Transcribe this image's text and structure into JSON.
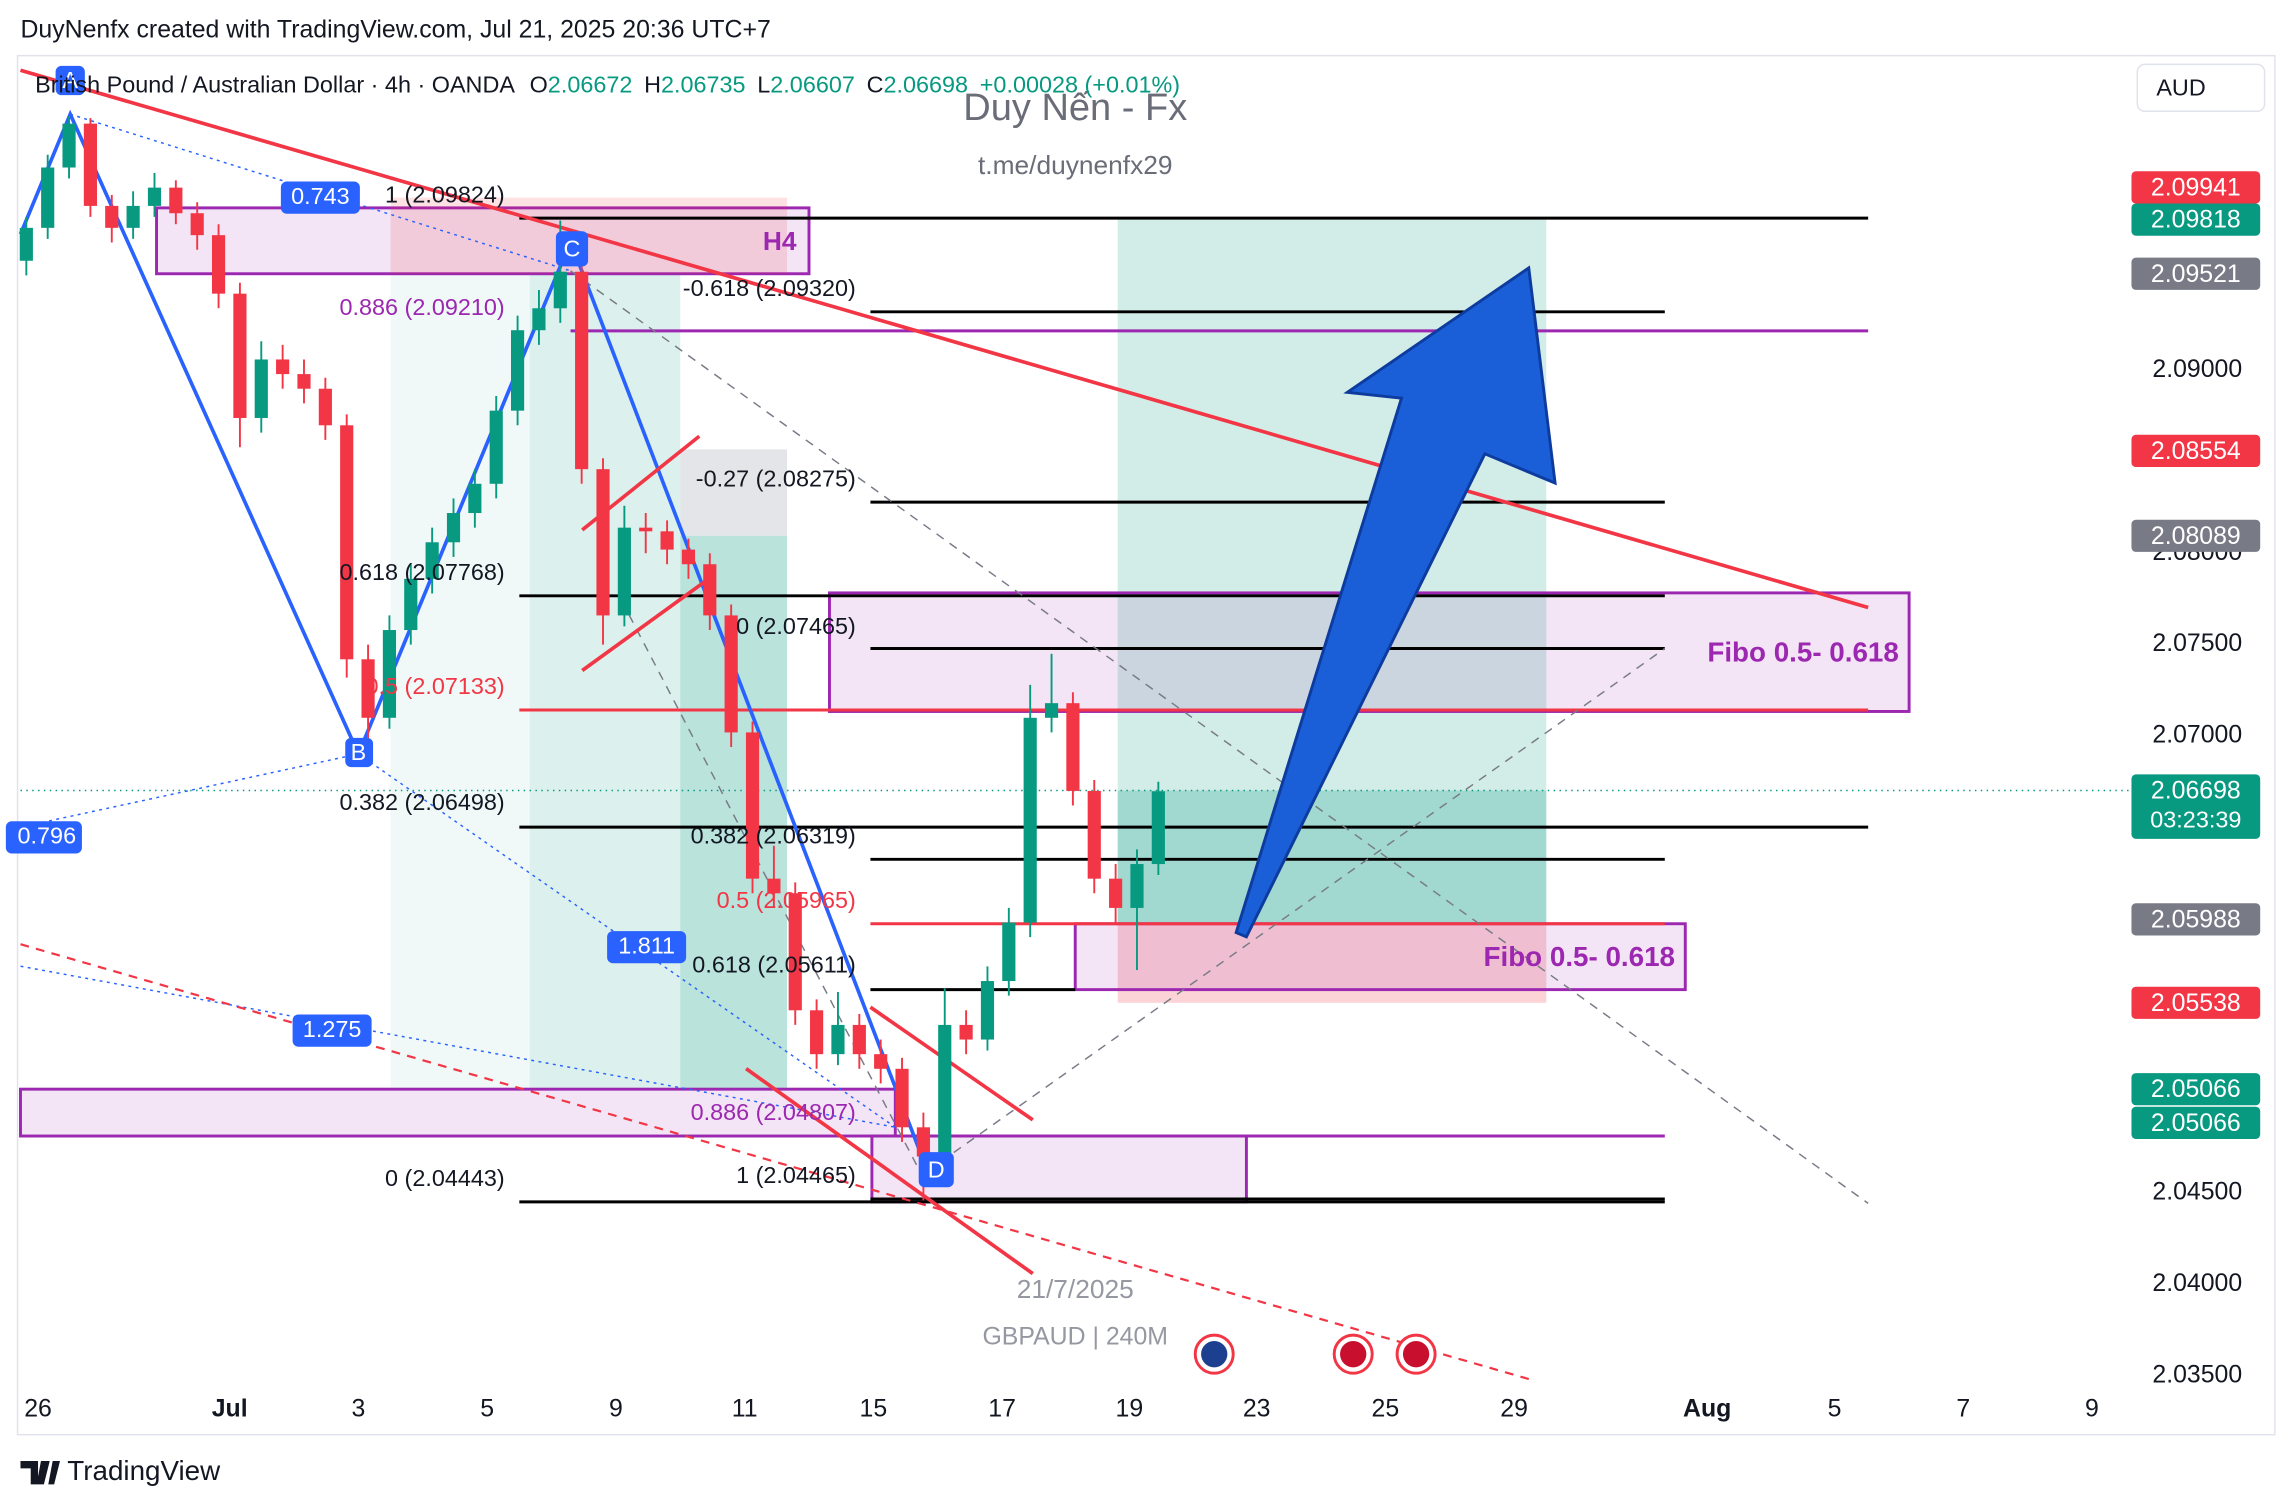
{
  "header": {
    "credit": "DuyNenfx created with TradingView.com, Jul 21, 2025 20:36 UTC+7",
    "symbol": "British Pound / Australian Dollar · 4h · OANDA",
    "ohlc": [
      {
        "k": "O",
        "v": "2.06672"
      },
      {
        "k": "H",
        "v": "2.06735"
      },
      {
        "k": "L",
        "v": "2.06607"
      },
      {
        "k": "C",
        "v": "2.06698"
      }
    ],
    "change": "+0.00028 (+0.01%)"
  },
  "currency": "AUD",
  "watermark": {
    "title": "Duy Nến - Fx",
    "link": "t.me/duynenfx29",
    "date": "21/7/2025",
    "symbol": "GBPAUD | 240M"
  },
  "drawing_labels": {
    "a": "A",
    "b": "B",
    "c": "C",
    "d": "D",
    "h4": "H4",
    "r743": "0.743",
    "r796": "0.796",
    "r1811": "1.811",
    "r1275": "1.275",
    "f1_top": "1 (2.09824)",
    "fm618": "-0.618 (2.09320)",
    "f886_top": "0.886 (2.09210)",
    "fm27": "-0.27 (2.08275)",
    "f618_left": "0.618 (2.07768)",
    "f0_mid": "0 (2.07465)",
    "f5_left": "0.5 (2.07133)",
    "zone_top": "Fibo 0.5- 0.618",
    "f382_left": "0.382 (2.06498)",
    "f382_mid": "0.382 (2.06319)",
    "f5_mid": "0.5 (2.05965)",
    "f618_mid": "0.618 (2.05611)",
    "zone_bottom": "Fibo 0.5- 0.618",
    "f886_bottom": "0.886 (2.04807)",
    "f0_bottom": "0 (2.04443)",
    "f1_bottom": "1 (2.04465)"
  },
  "chart_data": {
    "type": "candlestick",
    "up_color": "#089981",
    "down_color": "#f23645",
    "ohlc": [
      [
        2.096,
        2.0984,
        2.0952,
        2.0978
      ],
      [
        2.0978,
        2.1018,
        2.0972,
        2.1011
      ],
      [
        2.1011,
        2.1039,
        2.1005,
        2.1035
      ],
      [
        2.1035,
        2.1038,
        2.0984,
        2.099
      ],
      [
        2.099,
        2.0996,
        2.097,
        2.0978
      ],
      [
        2.0978,
        2.0998,
        2.0972,
        2.099
      ],
      [
        2.099,
        2.1008,
        2.0984,
        2.1
      ],
      [
        2.1,
        2.1004,
        2.098,
        2.0986
      ],
      [
        2.0986,
        2.0992,
        2.0966,
        2.0974
      ],
      [
        2.0974,
        2.098,
        2.0934,
        2.0942
      ],
      [
        2.0942,
        2.0948,
        2.0858,
        2.0874
      ],
      [
        2.0874,
        2.0916,
        2.0866,
        2.0906
      ],
      [
        2.0906,
        2.0914,
        2.089,
        2.0898
      ],
      [
        2.0898,
        2.0906,
        2.0882,
        2.089
      ],
      [
        2.089,
        2.0896,
        2.0862,
        2.087
      ],
      [
        2.087,
        2.0876,
        2.0732,
        2.0742
      ],
      [
        2.0742,
        2.075,
        2.0694,
        2.071
      ],
      [
        2.071,
        2.0766,
        2.0704,
        2.0758
      ],
      [
        2.0758,
        2.0794,
        2.075,
        2.0786
      ],
      [
        2.0786,
        2.0814,
        2.0778,
        2.0806
      ],
      [
        2.0806,
        2.083,
        2.0798,
        2.0822
      ],
      [
        2.0822,
        2.0846,
        2.0814,
        2.0838
      ],
      [
        2.0838,
        2.0886,
        2.083,
        2.0878
      ],
      [
        2.0878,
        2.093,
        2.087,
        2.0922
      ],
      [
        2.0922,
        2.0944,
        2.0914,
        2.0934
      ],
      [
        2.0934,
        2.0982,
        2.0926,
        2.0954
      ],
      [
        2.0954,
        2.096,
        2.0838,
        2.0846
      ],
      [
        2.0846,
        2.0852,
        2.075,
        2.0766
      ],
      [
        2.0766,
        2.0826,
        2.076,
        2.0814
      ],
      [
        2.0814,
        2.0822,
        2.08,
        2.0812
      ],
      [
        2.0812,
        2.0818,
        2.0794,
        2.0802
      ],
      [
        2.0802,
        2.0808,
        2.0786,
        2.0794
      ],
      [
        2.0794,
        2.08,
        2.0758,
        2.0766
      ],
      [
        2.0766,
        2.0772,
        2.0694,
        2.0702
      ],
      [
        2.0702,
        2.0708,
        2.0614,
        2.0622
      ],
      [
        2.0622,
        2.064,
        2.0606,
        2.0614
      ],
      [
        2.0614,
        2.062,
        2.0542,
        2.055
      ],
      [
        2.055,
        2.0556,
        2.0518,
        2.0526
      ],
      [
        2.0526,
        2.056,
        2.052,
        2.0542
      ],
      [
        2.0542,
        2.0548,
        2.0518,
        2.0526
      ],
      [
        2.0526,
        2.0534,
        2.051,
        2.0518
      ],
      [
        2.0518,
        2.0524,
        2.0478,
        2.0486
      ],
      [
        2.0486,
        2.0494,
        2.0446,
        2.047
      ],
      [
        2.047,
        2.0562,
        2.0464,
        2.0542
      ],
      [
        2.0542,
        2.055,
        2.0526,
        2.0534
      ],
      [
        2.0534,
        2.0574,
        2.0528,
        2.0566
      ],
      [
        2.0566,
        2.0606,
        2.0558,
        2.0598
      ],
      [
        2.0598,
        2.0728,
        2.059,
        2.071
      ],
      [
        2.071,
        2.0745,
        2.0702,
        2.0718
      ],
      [
        2.0718,
        2.0724,
        2.0662,
        2.067
      ],
      [
        2.067,
        2.0676,
        2.0614,
        2.0622
      ],
      [
        2.0622,
        2.063,
        2.0598,
        2.0606
      ],
      [
        2.0606,
        2.0638,
        2.0572,
        2.063
      ],
      [
        2.063,
        2.0675,
        2.0624,
        2.06698
      ]
    ],
    "ylim": [
      2.03459,
      2.10706
    ],
    "yticks": [
      {
        "value": 2.035,
        "label": "2.03500"
      },
      {
        "value": 2.04,
        "label": "2.04000"
      },
      {
        "value": 2.045,
        "label": "2.04500"
      },
      {
        "value": 2.07,
        "label": "2.07000"
      },
      {
        "value": 2.075,
        "label": "2.07500"
      },
      {
        "value": 2.08,
        "label": "2.08000"
      },
      {
        "value": 2.09,
        "label": "2.09000"
      }
    ],
    "xtick_labels": [
      "26",
      "Jul",
      "3",
      "5",
      "9",
      "11",
      "15",
      "17",
      "19",
      "23",
      "25",
      "29",
      "Aug",
      "5",
      "7",
      "9"
    ],
    "price_labels": [
      {
        "text": "2.09941",
        "color": "#f23645"
      },
      {
        "text": "2.09818",
        "color": "#089981"
      },
      {
        "text": "2.09521",
        "color": "#787b86"
      },
      {
        "text": "2.08554",
        "color": "#f23645"
      },
      {
        "text": "2.08089",
        "color": "#787b86"
      },
      {
        "text": "2.06698",
        "color": "#089981"
      },
      {
        "text": "2.05988",
        "color": "#787b86"
      },
      {
        "text": "2.05538",
        "color": "#f23645"
      },
      {
        "text": "2.05066",
        "color": "#089981"
      },
      {
        "text": "2.05066",
        "color": "#089981"
      }
    ],
    "countdown": "03:23:39"
  },
  "footer": "TradingView"
}
